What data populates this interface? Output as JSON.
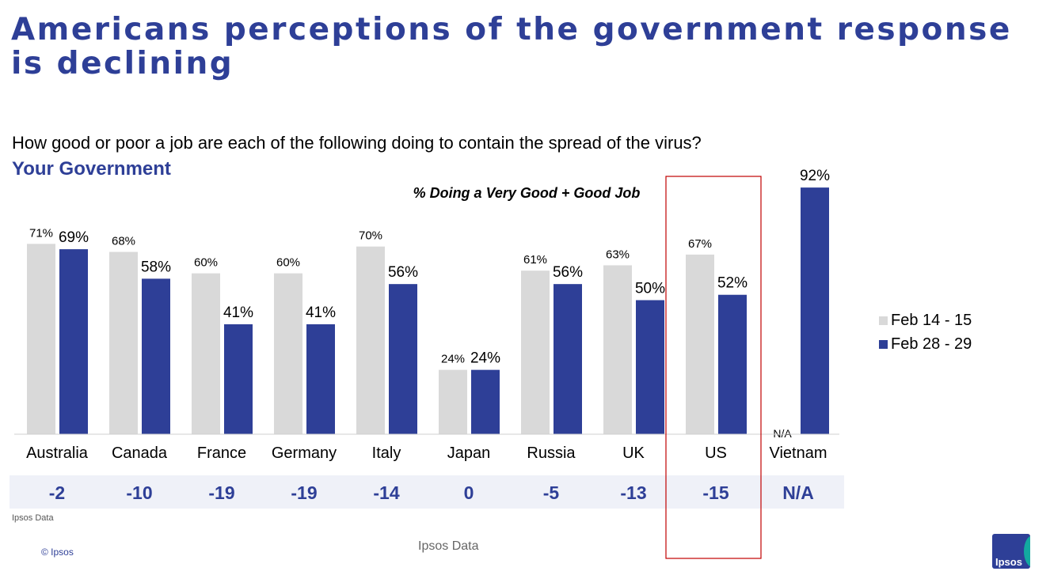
{
  "title": "Americans perceptions of the government response is declining",
  "question": "How good or poor a job are each of the following doing to contain the spread of the virus?",
  "subject": "Your Government",
  "source_small": "Ipsos Data",
  "source_center": "Ipsos Data",
  "copyright": "© Ipsos",
  "logo_text": "Ipsos",
  "colors": {
    "brand": "#2e3f97",
    "series1": "#d9d9d9",
    "series2": "#2e3f97",
    "highlight": "#c00000",
    "change_band": "#eff1f8"
  },
  "chart_data": {
    "type": "bar",
    "subtitle": "% Doing a Very Good + Good Job",
    "categories": [
      "Australia",
      "Canada",
      "France",
      "Germany",
      "Italy",
      "Japan",
      "Russia",
      "UK",
      "US",
      "Vietnam"
    ],
    "series": [
      {
        "name": "Feb 14 - 15",
        "values": [
          71,
          68,
          60,
          60,
          70,
          24,
          61,
          63,
          67,
          null
        ],
        "labels": [
          "71%",
          "68%",
          "60%",
          "60%",
          "70%",
          "24%",
          "61%",
          "63%",
          "67%",
          "N/A"
        ]
      },
      {
        "name": "Feb 28 - 29",
        "values": [
          69,
          58,
          41,
          41,
          56,
          24,
          56,
          50,
          52,
          92
        ],
        "labels": [
          "69%",
          "58%",
          "41%",
          "41%",
          "56%",
          "24%",
          "56%",
          "50%",
          "52%",
          "92%"
        ]
      }
    ],
    "change": [
      "-2",
      "-10",
      "-19",
      "-19",
      "-14",
      "0",
      "-5",
      "-13",
      "-15",
      "N/A"
    ],
    "highlight": "US",
    "ylim": [
      0,
      100
    ],
    "legend_position": "right"
  }
}
